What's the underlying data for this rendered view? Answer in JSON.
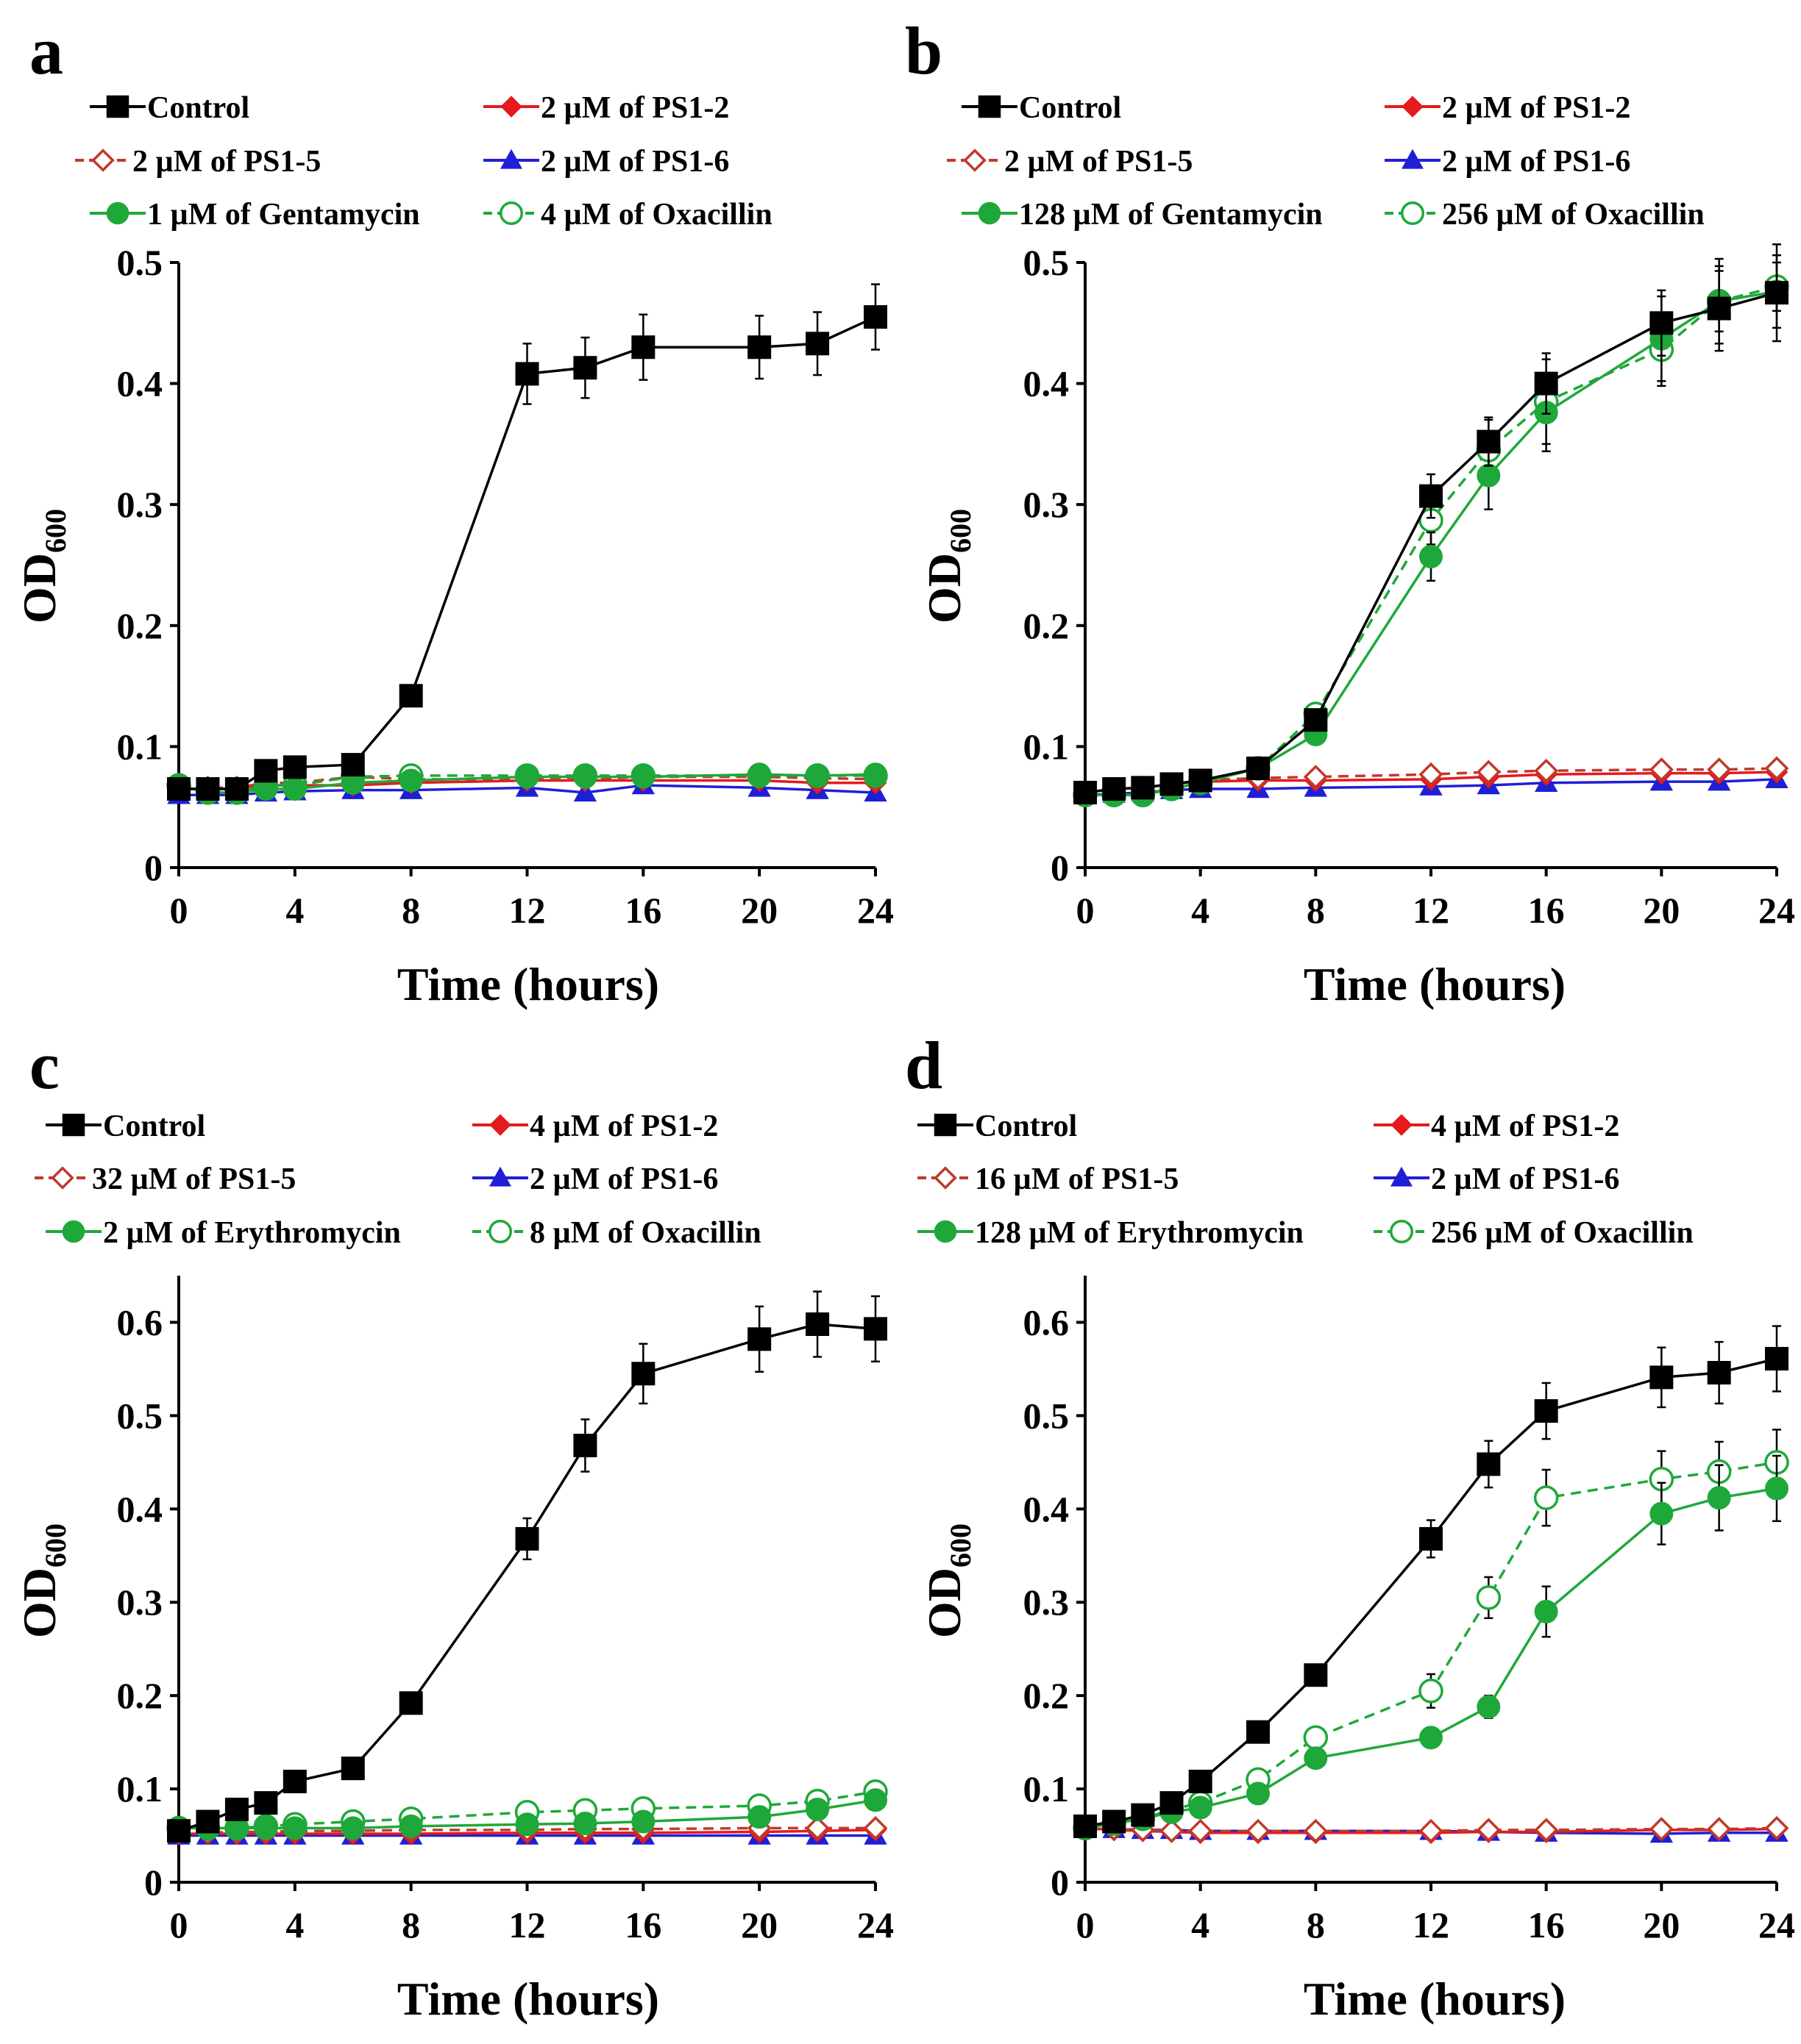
{
  "figure": {
    "x_ticks": [
      "0",
      "4",
      "8",
      "12",
      "16",
      "20",
      "24"
    ],
    "x_label": "Time (hours)",
    "y_label_main": "OD",
    "y_label_sub": "600"
  },
  "colors": {
    "control": "#000000",
    "ps1_2": "#e41a1c",
    "ps1_5": "#c0392b",
    "ps1_6": "#1f1fd6",
    "antibiotic": "#1fa83a"
  },
  "chart_data": [
    {
      "panel": "a",
      "type": "line",
      "x": [
        0,
        1,
        2,
        3,
        4,
        6,
        8,
        12,
        14,
        16,
        20,
        22,
        24
      ],
      "ylim": [
        0,
        0.5
      ],
      "yticks": [
        "0",
        "0.1",
        "0.2",
        "0.3",
        "0.4",
        "0.5"
      ],
      "xlabel": "Time (hours)",
      "ylabel": "OD600",
      "series": [
        {
          "name": "Control",
          "values": [
            0.065,
            0.065,
            0.065,
            0.08,
            0.083,
            0.085,
            0.142,
            0.408,
            0.413,
            0.43,
            0.43,
            0.433,
            0.455
          ],
          "errors": [
            0,
            0,
            0,
            0,
            0,
            0,
            0,
            0.025,
            0.025,
            0.027,
            0.026,
            0.026,
            0.027
          ]
        },
        {
          "name": "2 µM of PS1-2",
          "values": [
            0.065,
            0.065,
            0.065,
            0.068,
            0.068,
            0.068,
            0.07,
            0.072,
            0.072,
            0.072,
            0.072,
            0.07,
            0.07
          ]
        },
        {
          "name": "2 µM of PS1-5",
          "values": [
            0.066,
            0.066,
            0.066,
            0.07,
            0.07,
            0.075,
            0.073,
            0.073,
            0.073,
            0.075,
            0.075,
            0.074,
            0.073
          ]
        },
        {
          "name": "2 µM of PS1-6",
          "values": [
            0.06,
            0.06,
            0.06,
            0.062,
            0.063,
            0.064,
            0.064,
            0.066,
            0.062,
            0.068,
            0.066,
            0.064,
            0.062
          ]
        },
        {
          "name": "1 µM of Gentamycin",
          "values": [
            0.068,
            0.062,
            0.062,
            0.065,
            0.065,
            0.07,
            0.072,
            0.075,
            0.075,
            0.075,
            0.077,
            0.076,
            0.077
          ]
        },
        {
          "name": "4 µM of Oxacillin",
          "values": [
            0.068,
            0.062,
            0.062,
            0.068,
            0.068,
            0.075,
            0.076,
            0.076,
            0.076,
            0.076,
            0.076,
            0.076,
            0.076
          ]
        }
      ]
    },
    {
      "panel": "b",
      "type": "line",
      "x": [
        0,
        1,
        2,
        3,
        4,
        6,
        8,
        12,
        14,
        16,
        20,
        22,
        24
      ],
      "ylim": [
        0,
        0.5
      ],
      "yticks": [
        "0",
        "0.1",
        "0.2",
        "0.3",
        "0.4",
        "0.5"
      ],
      "xlabel": "Time (hours)",
      "ylabel": "OD600",
      "series": [
        {
          "name": "Control",
          "values": [
            0.062,
            0.065,
            0.066,
            0.069,
            0.072,
            0.082,
            0.122,
            0.307,
            0.352,
            0.4,
            0.45,
            0.462,
            0.475
          ],
          "errors": [
            0,
            0,
            0,
            0,
            0,
            0,
            0,
            0.018,
            0.02,
            0.025,
            0.027,
            0.035,
            0.04
          ]
        },
        {
          "name": "2 µM of PS1-2",
          "values": [
            0.062,
            0.065,
            0.066,
            0.069,
            0.071,
            0.072,
            0.072,
            0.073,
            0.075,
            0.077,
            0.078,
            0.078,
            0.079
          ]
        },
        {
          "name": "2 µM of PS1-5",
          "values": [
            0.062,
            0.065,
            0.066,
            0.069,
            0.072,
            0.074,
            0.075,
            0.077,
            0.079,
            0.08,
            0.081,
            0.081,
            0.082
          ]
        },
        {
          "name": "2 µM of PS1-6",
          "values": [
            0.06,
            0.061,
            0.062,
            0.064,
            0.065,
            0.065,
            0.066,
            0.067,
            0.068,
            0.07,
            0.071,
            0.071,
            0.073
          ]
        },
        {
          "name": "128 µM of Gentamycin",
          "values": [
            0.06,
            0.06,
            0.06,
            0.065,
            0.07,
            0.082,
            0.11,
            0.257,
            0.324,
            0.376,
            0.437,
            0.468,
            0.476
          ],
          "errors": [
            0,
            0,
            0,
            0,
            0,
            0,
            0,
            0.02,
            0.028,
            0.032,
            0.035,
            0.035,
            0.03
          ]
        },
        {
          "name": "256 µM of Oxacillin",
          "values": [
            0.06,
            0.06,
            0.06,
            0.065,
            0.07,
            0.082,
            0.127,
            0.287,
            0.345,
            0.385,
            0.428,
            0.468,
            0.48
          ],
          "errors": [
            0,
            0,
            0,
            0,
            0,
            0,
            0,
            0.02,
            0.025,
            0.035,
            0.03,
            0.025,
            0.02
          ]
        }
      ]
    },
    {
      "panel": "c",
      "type": "line",
      "x": [
        0,
        1,
        2,
        3,
        4,
        6,
        8,
        12,
        14,
        16,
        20,
        22,
        24
      ],
      "ylim": [
        0,
        0.65
      ],
      "yticks": [
        "0",
        "0.1",
        "0.2",
        "0.3",
        "0.4",
        "0.5",
        "0.6"
      ],
      "xlabel": "Time (hours)",
      "ylabel": "OD600",
      "series": [
        {
          "name": "Control",
          "values": [
            0.055,
            0.065,
            0.078,
            0.085,
            0.108,
            0.122,
            0.192,
            0.368,
            0.468,
            0.545,
            0.582,
            0.598,
            0.593
          ],
          "errors": [
            0,
            0,
            0,
            0,
            0,
            0,
            0,
            0.022,
            0.028,
            0.032,
            0.035,
            0.035,
            0.035
          ]
        },
        {
          "name": "4 µM of PS1-2",
          "values": [
            0.052,
            0.052,
            0.052,
            0.052,
            0.052,
            0.052,
            0.052,
            0.053,
            0.053,
            0.053,
            0.054,
            0.055,
            0.056
          ]
        },
        {
          "name": "32 µM of PS1-5",
          "values": [
            0.053,
            0.053,
            0.054,
            0.054,
            0.055,
            0.055,
            0.056,
            0.056,
            0.057,
            0.057,
            0.058,
            0.058,
            0.058
          ]
        },
        {
          "name": "2 µM of PS1-6",
          "values": [
            0.05,
            0.05,
            0.05,
            0.05,
            0.05,
            0.05,
            0.05,
            0.05,
            0.05,
            0.05,
            0.05,
            0.05,
            0.05
          ]
        },
        {
          "name": "2 µM of Erythromycin",
          "values": [
            0.058,
            0.058,
            0.058,
            0.058,
            0.058,
            0.058,
            0.06,
            0.062,
            0.063,
            0.065,
            0.07,
            0.078,
            0.088
          ]
        },
        {
          "name": "8 µM of Oxacillin",
          "values": [
            0.058,
            0.058,
            0.058,
            0.06,
            0.062,
            0.065,
            0.068,
            0.075,
            0.077,
            0.079,
            0.082,
            0.087,
            0.097
          ]
        }
      ]
    },
    {
      "panel": "d",
      "type": "line",
      "x": [
        0,
        1,
        2,
        3,
        4,
        6,
        8,
        12,
        14,
        16,
        20,
        22,
        24
      ],
      "ylim": [
        0,
        0.65
      ],
      "yticks": [
        "0",
        "0.1",
        "0.2",
        "0.3",
        "0.4",
        "0.5",
        "0.6"
      ],
      "xlabel": "Time (hours)",
      "ylabel": "OD600",
      "series": [
        {
          "name": "Control",
          "values": [
            0.06,
            0.065,
            0.072,
            0.085,
            0.108,
            0.161,
            0.222,
            0.368,
            0.448,
            0.505,
            0.541,
            0.546,
            0.561
          ],
          "errors": [
            0,
            0,
            0,
            0,
            0,
            0,
            0,
            0.02,
            0.025,
            0.03,
            0.032,
            0.033,
            0.035
          ]
        },
        {
          "name": "4 µM of PS1-2",
          "values": [
            0.058,
            0.056,
            0.055,
            0.054,
            0.053,
            0.053,
            0.053,
            0.053,
            0.054,
            0.054,
            0.056,
            0.056,
            0.057
          ]
        },
        {
          "name": "16 µM of PS1-5",
          "values": [
            0.058,
            0.057,
            0.056,
            0.055,
            0.055,
            0.055,
            0.055,
            0.055,
            0.056,
            0.056,
            0.057,
            0.057,
            0.058
          ]
        },
        {
          "name": "2 µM of PS1-6",
          "values": [
            0.057,
            0.057,
            0.056,
            0.056,
            0.055,
            0.055,
            0.055,
            0.055,
            0.054,
            0.053,
            0.052,
            0.053,
            0.053
          ]
        },
        {
          "name": "128 µM of Erythromycin",
          "values": [
            0.058,
            0.063,
            0.068,
            0.075,
            0.08,
            0.095,
            0.133,
            0.155,
            0.188,
            0.29,
            0.395,
            0.412,
            0.422
          ],
          "errors": [
            0,
            0,
            0,
            0,
            0,
            0,
            0,
            0,
            0.012,
            0.027,
            0.033,
            0.035,
            0.035
          ]
        },
        {
          "name": "256 µM of Oxacillin",
          "values": [
            0.058,
            0.063,
            0.068,
            0.078,
            0.085,
            0.11,
            0.155,
            0.205,
            0.305,
            0.412,
            0.432,
            0.44,
            0.45
          ],
          "errors": [
            0,
            0,
            0,
            0,
            0,
            0,
            0,
            0.018,
            0.022,
            0.03,
            0.03,
            0.032,
            0.035
          ]
        }
      ]
    }
  ]
}
